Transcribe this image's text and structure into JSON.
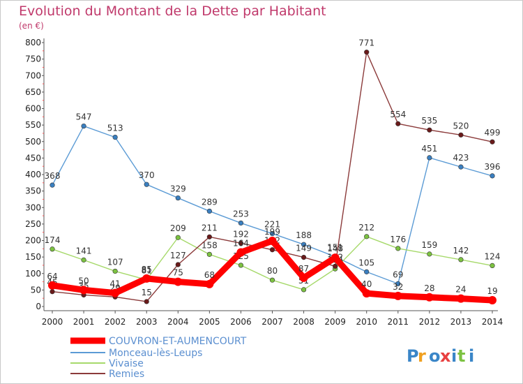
{
  "chart_data": {
    "type": "line",
    "title": "Evolution du Montant de la Dette par Habitant",
    "subtitle": "(en €)",
    "x": [
      "2000",
      "2001",
      "2002",
      "2003",
      "2004",
      "2005",
      "2006",
      "2007",
      "2008",
      "2009",
      "2010",
      "2011",
      "2012",
      "2013",
      "2014"
    ],
    "yticks": [
      0,
      50,
      100,
      150,
      200,
      250,
      300,
      350,
      400,
      450,
      500,
      550,
      600,
      650,
      700,
      750,
      800
    ],
    "ylim": [
      0,
      800
    ],
    "grid": false,
    "legend_position": "bottom-left",
    "series": [
      {
        "name": "Monceau-lès-Leups",
        "color": "#5b9bd5",
        "dot": "#3a7fc0",
        "values": [
          368,
          547,
          513,
          370,
          329,
          289,
          253,
          221,
          188,
          151,
          105,
          69,
          451,
          423,
          396
        ],
        "labels": [
          "368",
          "547",
          "513",
          "370",
          "329",
          "289",
          "253",
          "221",
          "188",
          "151",
          "105",
          "69",
          "451",
          "423",
          "396"
        ]
      },
      {
        "name": "Vivaise",
        "color": "#a6d96a",
        "dot": "#7cc241",
        "values": [
          174,
          141,
          107,
          81,
          209,
          158,
          125,
          80,
          51,
          114,
          212,
          176,
          159,
          142,
          124
        ],
        "labels": [
          "174",
          "141",
          "107",
          "81",
          "209",
          "158",
          "125",
          "80",
          "51",
          "114",
          "212",
          "176",
          "159",
          "142",
          "124"
        ]
      },
      {
        "name": "Remies",
        "color": "#8b3a3a",
        "dot": "#6a1a1a",
        "values": [
          45,
          35,
          29,
          15,
          127,
          211,
          192,
          172,
          149,
          122,
          771,
          554,
          535,
          520,
          499
        ],
        "labels": [
          "45",
          "35",
          "29",
          "15",
          "127",
          "211",
          "192",
          "172",
          "149",
          "122",
          "771",
          "554",
          "535",
          "520",
          "499"
        ]
      },
      {
        "name": "COUVRON-ET-AUMENCOURT",
        "color": "#ff0000",
        "dot": "#ff0000",
        "values": [
          64,
          50,
          41,
          85,
          75,
          68,
          164,
          199,
          87,
          148,
          40,
          32,
          28,
          24,
          19
        ],
        "labels": [
          "64",
          "50",
          "41",
          "85",
          "75",
          "68",
          "164",
          "199",
          "87",
          "148",
          "40",
          "32",
          "28",
          "24",
          "19"
        ]
      }
    ],
    "legend_order": [
      "COUVRON-ET-AUMENCOURT",
      "Monceau-lès-Leups",
      "Vivaise",
      "Remies"
    ]
  },
  "logo": {
    "text": "Proxiti"
  }
}
